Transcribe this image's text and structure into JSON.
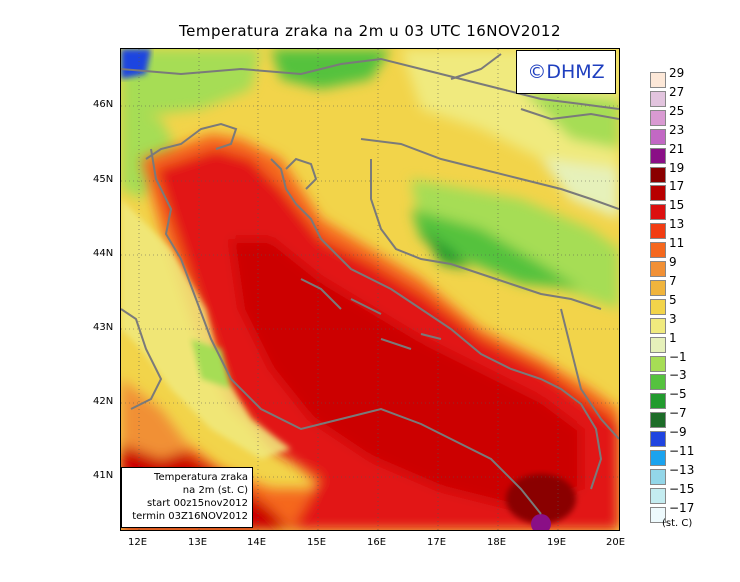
{
  "title": "Temperatura zraka na 2m u 03 UTC 16NOV2012",
  "copyright": "©DHMZ",
  "info_box": {
    "line1": "Temperatura zraka",
    "line2": "na 2m (st. C)",
    "line3": "start 00z15nov2012",
    "line4": "termin 03Z16NOV2012"
  },
  "y_axis_labels": [
    "46N",
    "45N",
    "44N",
    "43N",
    "42N",
    "41N"
  ],
  "x_axis_labels": [
    "12E",
    "13E",
    "14E",
    "15E",
    "16E",
    "17E",
    "18E",
    "19E",
    "20E"
  ],
  "legend": {
    "labels": [
      "29",
      "27",
      "25",
      "23",
      "21",
      "19",
      "17",
      "15",
      "13",
      "11",
      "9",
      "7",
      "5",
      "3",
      "1",
      "−1",
      "−3",
      "−5",
      "−7",
      "−9",
      "−11",
      "−13",
      "−15",
      "−17"
    ],
    "colors": [
      "#fde8d8",
      "#e2c4de",
      "#d99ad2",
      "#c268c4",
      "#8a0f86",
      "#8a0000",
      "#b80000",
      "#dc1010",
      "#f23c12",
      "#f5681e",
      "#f19035",
      "#f0b43c",
      "#f2d44a",
      "#f0ea7e",
      "#e6f1ba",
      "#a6dd55",
      "#55c23e",
      "#229b2e",
      "#1d6c28",
      "#1f44e0",
      "#1ba3ee",
      "#93d6e8",
      "#c4ecf0",
      "#eefafd"
    ],
    "units": "(st. C)"
  },
  "colors": {
    "sea_dark": "#cc0000",
    "sea_red": "#e21818",
    "coast_orange": "#f0b43c",
    "land_yellow": "#f2d44a",
    "land_green": "#55c23e",
    "borders": "#7a7a7a"
  }
}
